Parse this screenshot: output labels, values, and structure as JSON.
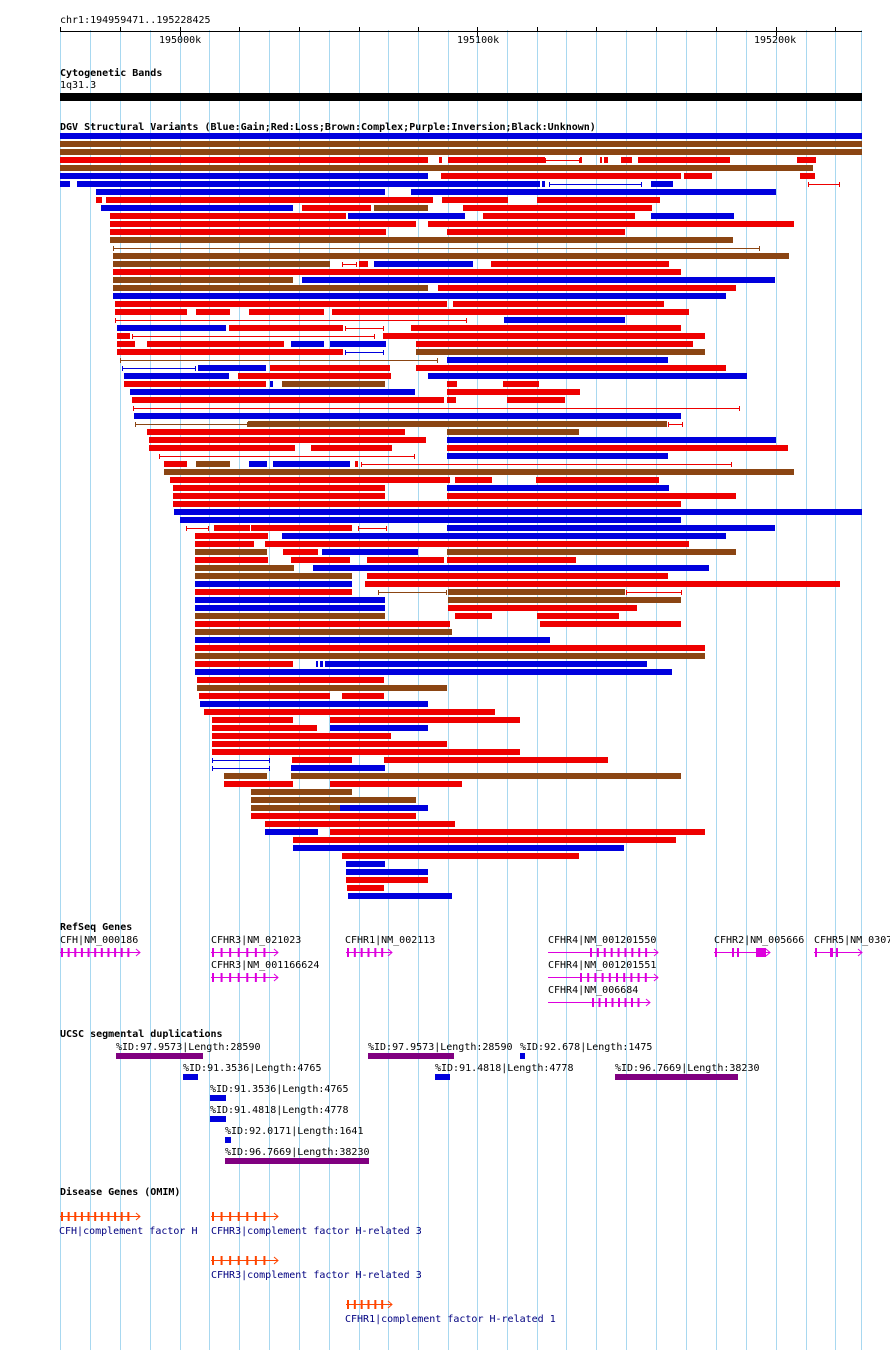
{
  "header": {
    "location": "chr1:194959471..195228425",
    "ticks": [
      "195000k",
      "195100k",
      "195200k"
    ]
  },
  "tracks": {
    "cytobands": {
      "title": "Cytogenetic Bands",
      "band_label": "1q31.3"
    },
    "dgv": {
      "title": "DGV Structural Variants (Blue:Gain;Red:Loss;Brown:Complex;Purple:Inversion;Black:Unknown)"
    },
    "refseq": {
      "title": "RefSeq Genes",
      "genes": [
        "CFH|NM_000186",
        "CFHR3|NM_021023",
        "CFHR3|NM_001166624",
        "CFHR1|NM_002113",
        "CFHR4|NM_001201550",
        "CFHR4|NM_001201551",
        "CFHR4|NM_006684",
        "CFHR2|NM_005666",
        "CFHR5|NM_0307"
      ]
    },
    "segdups": {
      "title": "UCSC segmental duplications",
      "items": [
        "%ID:97.9573|Length:28590",
        "%ID:97.9573|Length:28590",
        "%ID:92.678|Length:1475",
        "%ID:91.3536|Length:4765",
        "%ID:91.4818|Length:4778",
        "%ID:96.7669|Length:38230",
        "%ID:91.3536|Length:4765",
        "%ID:91.4818|Length:4778",
        "%ID:92.0171|Length:1641",
        "%ID:96.7669|Length:38230"
      ]
    },
    "omim": {
      "title": "Disease Genes (OMIM)",
      "genes": [
        "CFH|complement factor H",
        "CFHR3|complement factor H-related 3",
        "CFHR3|complement factor H-related 3",
        "CFHR1|complement factor H-related 1"
      ]
    }
  },
  "colors": {
    "gain": "#0000dd",
    "loss": "#ee0000",
    "complex": "#8b4513",
    "inversion": "#800080",
    "refseq": "#dd00dd",
    "omim": "#ff4500",
    "gridline": "#a8d8f0",
    "label_blue": "#000080"
  }
}
